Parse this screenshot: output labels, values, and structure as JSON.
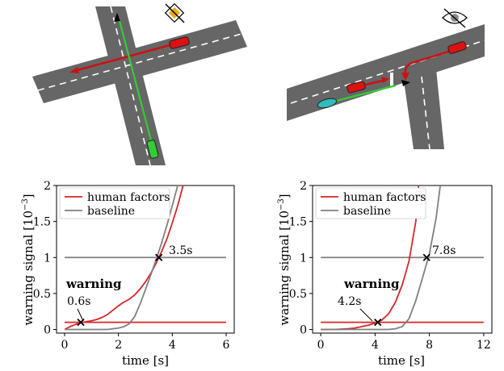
{
  "chart_data": [
    {
      "type": "line",
      "title": "",
      "xlabel": "time [s]",
      "ylabel": "warning signal [10^-3]",
      "xlim": [
        -0.3,
        6.3
      ],
      "ylim": [
        -0.05,
        2.0
      ],
      "x_ticks": [
        "0",
        "2",
        "4",
        "6"
      ],
      "y_ticks": [
        "0",
        "0.5",
        "1",
        "1.5",
        "2"
      ],
      "legend_position": "top-left",
      "series": [
        {
          "name": "human factors",
          "color": "#d62728",
          "x": [
            0.0,
            0.2,
            0.4,
            0.6,
            0.8,
            1.0,
            1.2,
            1.4,
            1.6,
            1.8,
            2.0,
            2.2,
            2.4,
            2.6,
            2.8,
            3.0,
            3.2,
            3.4,
            3.6,
            3.8,
            4.0,
            4.2,
            4.4
          ],
          "y": [
            0.0,
            0.04,
            0.07,
            0.09,
            0.11,
            0.12,
            0.14,
            0.17,
            0.21,
            0.27,
            0.33,
            0.38,
            0.42,
            0.48,
            0.56,
            0.66,
            0.78,
            0.92,
            1.08,
            1.26,
            1.48,
            1.72,
            2.0
          ]
        },
        {
          "name": "baseline",
          "color": "#808080",
          "x": [
            0.0,
            0.4,
            0.8,
            1.2,
            1.6,
            2.0,
            2.2,
            2.4,
            2.6,
            2.8,
            3.0,
            3.2,
            3.4,
            3.6,
            3.8,
            4.0,
            4.2
          ],
          "y": [
            0.0,
            0.0,
            0.0,
            0.0,
            0.0,
            0.02,
            0.04,
            0.08,
            0.18,
            0.35,
            0.55,
            0.76,
            0.97,
            1.2,
            1.45,
            1.72,
            2.0
          ]
        }
      ],
      "thresholds": [
        {
          "name": "warning",
          "y": 0.1,
          "color": "#d62728"
        },
        {
          "name": "baseline",
          "y": 1.0,
          "color": "#808080"
        }
      ],
      "crossings": [
        {
          "x": 0.6,
          "y": 0.1,
          "label": "0.6s"
        },
        {
          "x": 3.5,
          "y": 1.0,
          "label": "3.5s"
        }
      ],
      "annotation": "warning"
    },
    {
      "type": "line",
      "title": "",
      "xlabel": "time [s]",
      "ylabel": "warning signal [10^-3]",
      "xlim": [
        -0.6,
        12.6
      ],
      "ylim": [
        -0.05,
        2.0
      ],
      "x_ticks": [
        "0",
        "4",
        "8",
        "12"
      ],
      "y_ticks": [
        "0",
        "0.5",
        "1",
        "1.5",
        "2"
      ],
      "legend_position": "top-left",
      "series": [
        {
          "name": "human factors",
          "color": "#d62728",
          "x": [
            0.0,
            1.0,
            2.0,
            2.5,
            3.0,
            3.5,
            4.0,
            4.5,
            5.0,
            5.5,
            6.0,
            6.5,
            7.0,
            7.2
          ],
          "y": [
            0.0,
            0.0,
            0.01,
            0.02,
            0.04,
            0.06,
            0.09,
            0.13,
            0.22,
            0.38,
            0.62,
            0.95,
            1.5,
            2.0
          ]
        },
        {
          "name": "baseline",
          "color": "#808080",
          "x": [
            0.0,
            2.0,
            4.0,
            5.0,
            5.5,
            6.0,
            6.5,
            7.0,
            7.5,
            8.0,
            8.5,
            8.8
          ],
          "y": [
            0.0,
            0.0,
            0.0,
            0.0,
            0.01,
            0.04,
            0.15,
            0.4,
            0.72,
            1.05,
            1.55,
            2.0
          ]
        }
      ],
      "thresholds": [
        {
          "name": "warning",
          "y": 0.1,
          "color": "#d62728"
        },
        {
          "name": "baseline",
          "y": 1.0,
          "color": "#808080"
        }
      ],
      "crossings": [
        {
          "x": 4.2,
          "y": 0.1,
          "label": "4.2s"
        },
        {
          "x": 7.8,
          "y": 1.0,
          "label": "7.8s"
        }
      ],
      "annotation": "warning"
    }
  ],
  "scenes": [
    {
      "sign_icon": "priority-road-sign-icon",
      "vehicles": [
        "red car",
        "green car"
      ]
    },
    {
      "sign_icon": "eye-crossed-icon",
      "vehicles": [
        "red car",
        "red car",
        "cyan motorcycle"
      ]
    }
  ]
}
